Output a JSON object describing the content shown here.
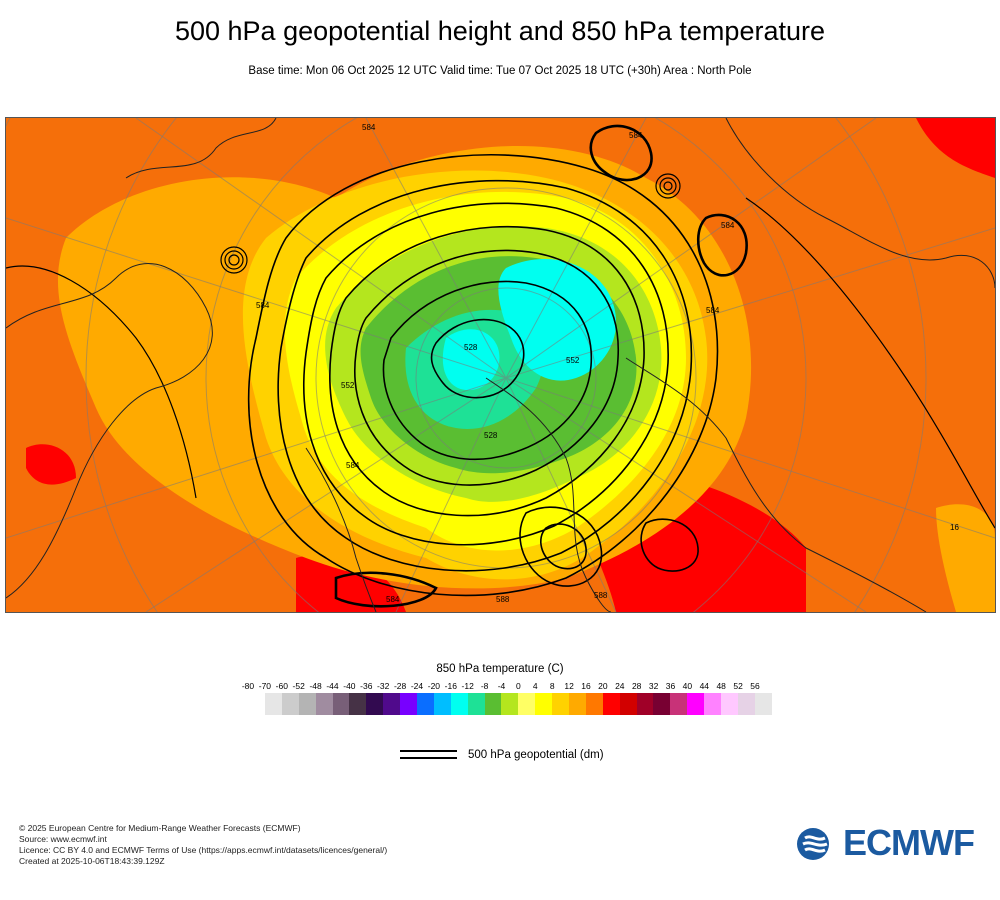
{
  "header": {
    "title": "500 hPa geopotential height and 850 hPa temperature",
    "subtitle": "Base time: Mon 06 Oct 2025 12 UTC Valid time: Tue 07 Oct 2025 18 UTC (+30h) Area : North Pole"
  },
  "map": {
    "projection": "polar stereographic, North Pole",
    "contour_labels": [
      "584",
      "584",
      "584",
      "584",
      "584",
      "584",
      "528",
      "528",
      "552",
      "552",
      "588",
      "588",
      "584",
      "16"
    ]
  },
  "legend": {
    "title": "850 hPa temperature (C)",
    "ticks": [
      "-80",
      "-70",
      "-60",
      "-52",
      "-48",
      "-44",
      "-40",
      "-36",
      "-32",
      "-28",
      "-24",
      "-20",
      "-16",
      "-12",
      "-8",
      "-4",
      "0",
      "4",
      "8",
      "12",
      "16",
      "20",
      "24",
      "28",
      "32",
      "36",
      "40",
      "44",
      "48",
      "52",
      "56"
    ],
    "colors": [
      "#e6e6e6",
      "#cccccc",
      "#b4b4b4",
      "#a08ca0",
      "#785f78",
      "#463246",
      "#320a50",
      "#500a8c",
      "#7800ff",
      "#0a6eff",
      "#00beff",
      "#00fff0",
      "#1ee196",
      "#5abe32",
      "#b4e61e",
      "#ffff64",
      "#ffff00",
      "#ffd200",
      "#ffaa00",
      "#ff7800",
      "#ff0000",
      "#d20000",
      "#a00028",
      "#780032",
      "#c83278",
      "#ff00ff",
      "#ff82ff",
      "#ffc8ff",
      "#e6d2e6",
      "#e6e6e6"
    ]
  },
  "contour_legend": {
    "label": "500 hPa geopotential (dm)"
  },
  "credits": {
    "line1": "© 2025 European Centre for Medium-Range Weather Forecasts (ECMWF)",
    "line2": "Source: www.ecmwf.int",
    "line3": "Licence: CC BY 4.0 and ECMWF Terms of Use (https://apps.ecmwf.int/datasets/licences/general/)",
    "line4": "Created at 2025-10-06T18:43:39.129Z"
  },
  "logo": {
    "text": "ECMWF",
    "color": "#1b5aa0"
  }
}
